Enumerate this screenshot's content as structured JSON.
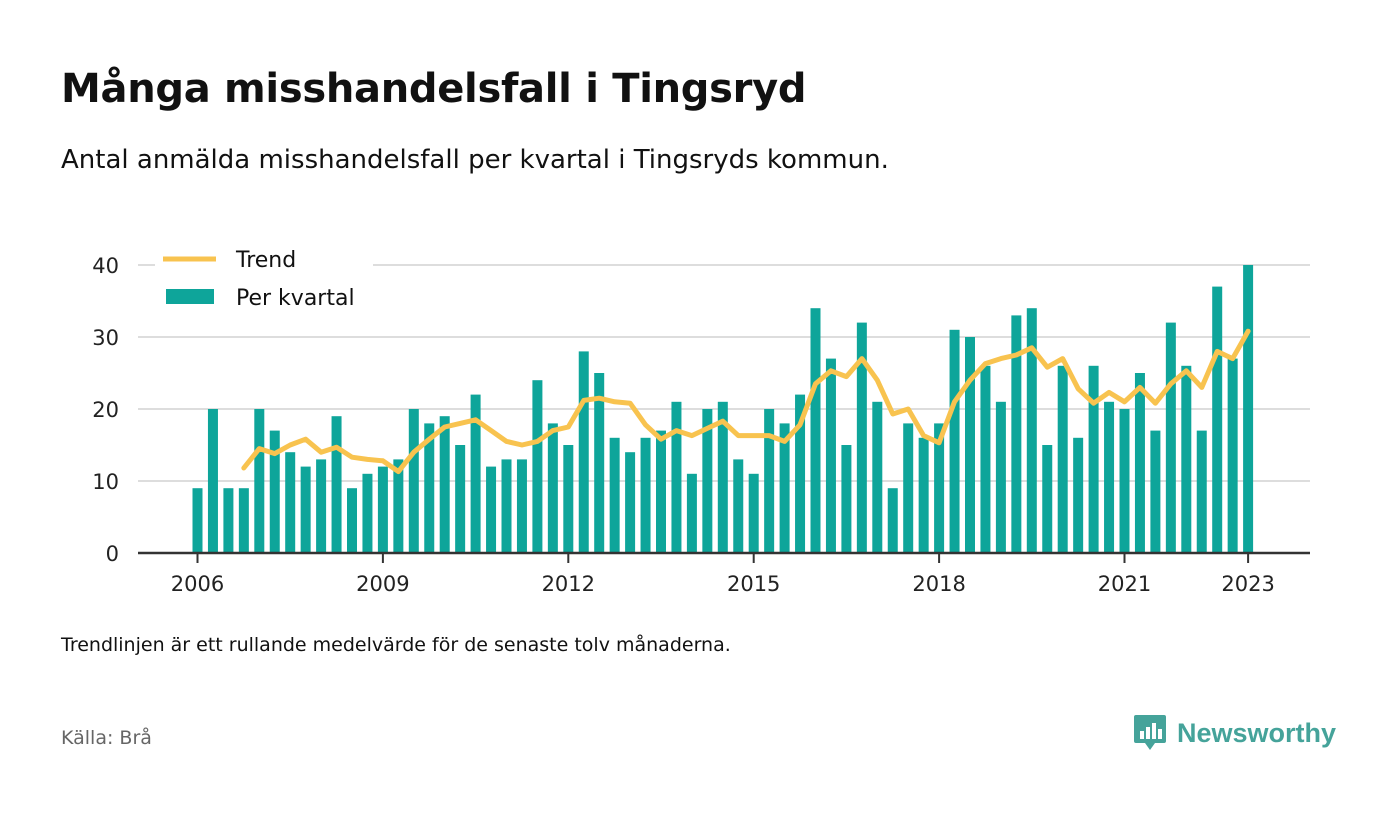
{
  "header": {
    "title": "Många misshandelsfall i Tingsryd",
    "subtitle": "Antal anmälda misshandelsfall per kvartal i Tingsryds kommun."
  },
  "footer": {
    "note": "Trendlinjen är ett rullande medelvärde för de senaste tolv månaderna.",
    "source": "Källa: Brå",
    "brand": "Newsworthy",
    "brand_icon": "newsworthy-logo-icon"
  },
  "colors": {
    "bar": "#0ea59a",
    "trend": "#f8c34f",
    "grid": "#dddddd",
    "axis": "#333333",
    "brand": "#45a39a"
  },
  "chart_data": {
    "type": "bar",
    "legend_position": "top-left",
    "grid": true,
    "ylim": [
      0,
      40
    ],
    "yticks": [
      "0",
      "10",
      "20",
      "30",
      "40"
    ],
    "xtick_labels": [
      "2006",
      "2009",
      "2012",
      "2015",
      "2018",
      "2021",
      "2023"
    ],
    "first_period": "2006 Q1",
    "last_period": "2023 Q1",
    "series": [
      {
        "name": "Per kvartal",
        "kind": "bar",
        "values": [
          9,
          20,
          9,
          9,
          20,
          17,
          14,
          12,
          13,
          19,
          9,
          11,
          12,
          13,
          20,
          18,
          19,
          15,
          22,
          12,
          13,
          13,
          24,
          18,
          15,
          28,
          25,
          16,
          14,
          16,
          17,
          21,
          11,
          20,
          21,
          13,
          11,
          20,
          18,
          22,
          34,
          27,
          15,
          32,
          21,
          9,
          18,
          16,
          18,
          31,
          30,
          26,
          21,
          33,
          34,
          15,
          26,
          16,
          26,
          21,
          20,
          25,
          17,
          32,
          26,
          17,
          37,
          27,
          40
        ]
      },
      {
        "name": "Trend",
        "kind": "line",
        "values": [
          null,
          null,
          null,
          11.8,
          14.5,
          13.8,
          15.0,
          15.8,
          14.0,
          14.7,
          13.3,
          13.0,
          12.8,
          11.3,
          14.0,
          15.8,
          17.5,
          18.0,
          18.5,
          17.0,
          15.5,
          15.0,
          15.5,
          17.0,
          17.5,
          21.2,
          21.5,
          21.0,
          20.8,
          17.8,
          15.8,
          17.0,
          16.3,
          17.3,
          18.3,
          16.3,
          16.3,
          16.3,
          15.5,
          17.8,
          23.5,
          25.3,
          24.5,
          27.0,
          24.0,
          19.3,
          20.0,
          16.3,
          15.3,
          21.0,
          24.0,
          26.3,
          27.0,
          27.5,
          28.5,
          25.8,
          27.0,
          22.8,
          20.8,
          22.3,
          21.0,
          23.0,
          20.8,
          23.5,
          25.3,
          23.0,
          28.0,
          27.0,
          30.8
        ]
      }
    ]
  }
}
